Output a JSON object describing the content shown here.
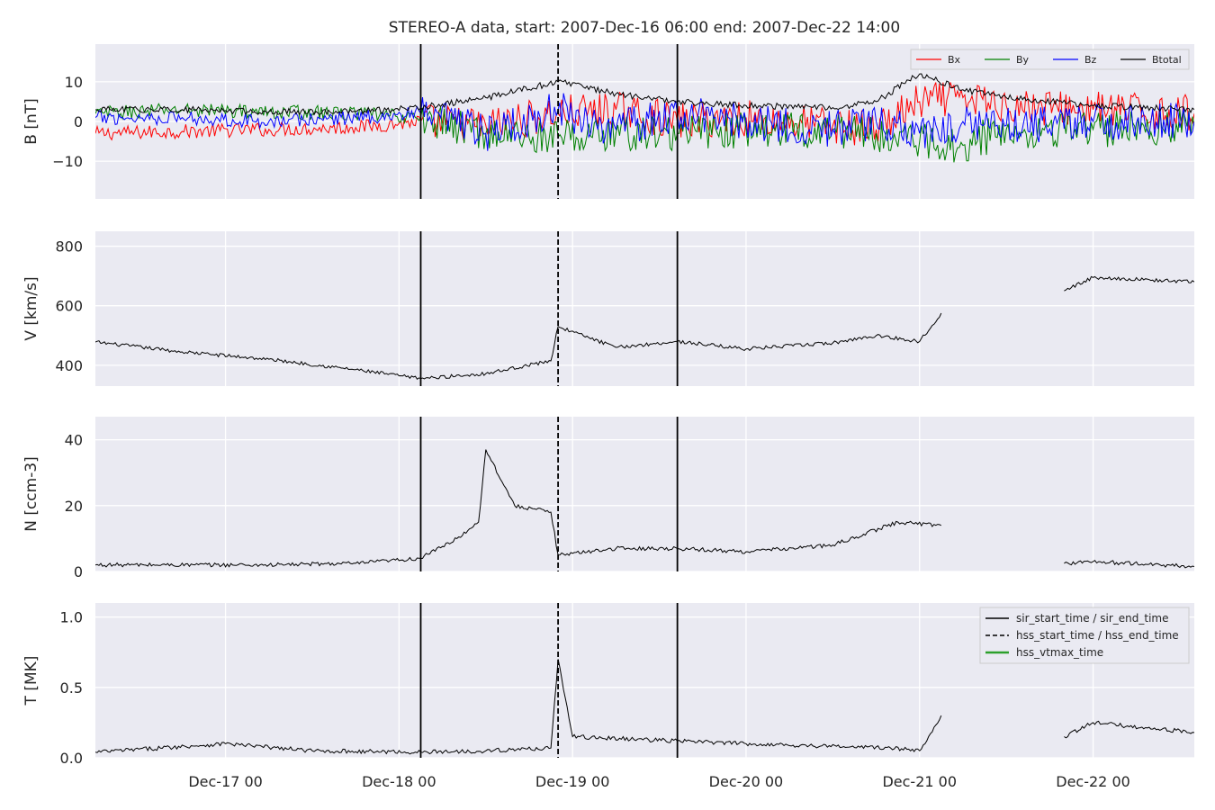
{
  "title": "STEREO-A data, start: 2007-Dec-16 06:00  end: 2007-Dec-22 14:00",
  "x_tick_labels": [
    "Dec-17 00",
    "Dec-18 00",
    "Dec-19 00",
    "Dec-20 00",
    "Dec-21 00",
    "Dec-22 00"
  ],
  "colors": {
    "panel_bg": "#eaeaf2",
    "grid": "#ffffff",
    "bx": "#ff0000",
    "by": "#008000",
    "bz": "#0000ff",
    "btotal": "#000000",
    "plasma": "#000000",
    "hss_vtmax": "#2ca02c"
  },
  "legend_b": [
    "Bx",
    "By",
    "Bz",
    "Btotal"
  ],
  "legend_events": [
    "sir_start_time / sir_end_time",
    "hss_start_time / hss_end_time",
    "hss_vtmax_time"
  ],
  "chart_data": {
    "type": "line",
    "x_axis": {
      "start": "2007-12-16 06:00",
      "end": "2007-12-22 14:00",
      "ticks": [
        "2007-12-17 00:00",
        "2007-12-18 00:00",
        "2007-12-19 00:00",
        "2007-12-20 00:00",
        "2007-12-21 00:00",
        "2007-12-22 00:00"
      ]
    },
    "events": {
      "sir_start_time": "2007-12-18 03:00",
      "hss_start_time": "2007-12-18 22:00",
      "sir_end_time": "2007-12-19 14:30"
    },
    "panels": [
      {
        "id": "b",
        "ylabel": "B [nT]",
        "ylim": [
          -19.5,
          19.5
        ],
        "yticks": [
          -10,
          0,
          10
        ],
        "ytick_labels": [
          "−10",
          "0",
          "10"
        ],
        "legend_position": "top-right",
        "x": [
          "2007-12-16 06:00",
          "2007-12-16 18:00",
          "2007-12-17 06:00",
          "2007-12-17 18:00",
          "2007-12-18 03:00",
          "2007-12-18 12:00",
          "2007-12-18 22:00",
          "2007-12-19 06:00",
          "2007-12-19 14:30",
          "2007-12-20 00:00",
          "2007-12-20 12:00",
          "2007-12-20 18:00",
          "2007-12-21 00:00",
          "2007-12-21 06:00",
          "2007-12-21 12:00",
          "2007-12-22 00:00",
          "2007-12-22 14:00"
        ],
        "series": [
          {
            "name": "Bx",
            "values": [
              -3,
              -2.5,
              -2,
              -1.5,
              0,
              -1,
              2,
              3,
              0,
              1,
              -1,
              -2,
              5,
              6,
              4,
              3,
              2
            ]
          },
          {
            "name": "By",
            "values": [
              2,
              3,
              2.5,
              2,
              1,
              -3,
              -4,
              -3,
              -3,
              -2,
              -2,
              -3,
              -5,
              -6,
              -2,
              -2,
              -1
            ]
          },
          {
            "name": "Bz",
            "values": [
              1,
              1,
              0,
              1,
              2,
              -3,
              3,
              -2,
              2,
              0,
              -2,
              0,
              -3,
              0,
              -1,
              0,
              0
            ]
          },
          {
            "name": "Btotal",
            "values": [
              3,
              3,
              2.5,
              2.5,
              3.5,
              6,
              10,
              7,
              5,
              4,
              3.5,
              5,
              12,
              8,
              6,
              4,
              3
            ]
          }
        ]
      },
      {
        "id": "v",
        "ylabel": "V [km/s]",
        "ylim": [
          330,
          850
        ],
        "yticks": [
          400,
          600,
          800
        ],
        "ytick_labels": [
          "400",
          "600",
          "800"
        ],
        "x": [
          "2007-12-16 06:00",
          "2007-12-16 18:00",
          "2007-12-17 06:00",
          "2007-12-17 18:00",
          "2007-12-18 03:00",
          "2007-12-18 12:00",
          "2007-12-18 21:00",
          "2007-12-18 22:00",
          "2007-12-19 06:00",
          "2007-12-19 14:30",
          "2007-12-20 00:00",
          "2007-12-20 12:00",
          "2007-12-20 18:00",
          "2007-12-21 00:00",
          "2007-12-21 03:00",
          "2007-12-21 12:00",
          "2007-12-21 20:00",
          "2007-12-22 00:00",
          "2007-12-22 14:00"
        ],
        "series": [
          {
            "name": "",
            "values": [
              478,
              445,
              420,
              385,
              355,
              372,
              415,
              530,
              460,
              480,
              455,
              475,
              500,
              480,
              575,
              null,
              650,
              695,
              680
            ]
          }
        ]
      },
      {
        "id": "n",
        "ylabel": "N [ccm-3]",
        "ylim": [
          0,
          47
        ],
        "yticks": [
          0,
          20,
          40
        ],
        "ytick_labels": [
          "0",
          "20",
          "40"
        ],
        "x": [
          "2007-12-16 06:00",
          "2007-12-17 06:00",
          "2007-12-17 18:00",
          "2007-12-18 03:00",
          "2007-12-18 08:00",
          "2007-12-18 11:00",
          "2007-12-18 12:00",
          "2007-12-18 16:00",
          "2007-12-18 21:00",
          "2007-12-18 22:00",
          "2007-12-19 06:00",
          "2007-12-19 14:30",
          "2007-12-20 00:00",
          "2007-12-20 12:00",
          "2007-12-20 21:00",
          "2007-12-21 03:00",
          "2007-12-21 12:00",
          "2007-12-21 20:00",
          "2007-12-22 00:00",
          "2007-12-22 14:00"
        ],
        "series": [
          {
            "name": "",
            "values": [
              2,
              2,
              2.5,
              4,
              10,
              15,
              37,
              20,
              18,
              5,
              7,
              7,
              6,
              8,
              15,
              14,
              null,
              2.5,
              3,
              1.5
            ]
          }
        ]
      },
      {
        "id": "t",
        "ylabel": "T [MK]",
        "ylim": [
          0,
          1.1
        ],
        "yticks": [
          0.0,
          0.5,
          1.0
        ],
        "ytick_labels": [
          "0.0",
          "0.5",
          "1.0"
        ],
        "legend_position": "top-right",
        "x": [
          "2007-12-16 06:00",
          "2007-12-17 00:00",
          "2007-12-17 12:00",
          "2007-12-18 03:00",
          "2007-12-18 12:00",
          "2007-12-18 21:00",
          "2007-12-18 22:00",
          "2007-12-19 00:00",
          "2007-12-19 14:30",
          "2007-12-20 00:00",
          "2007-12-20 20:00",
          "2007-12-21 00:00",
          "2007-12-21 03:00",
          "2007-12-21 12:00",
          "2007-12-21 20:00",
          "2007-12-22 00:00",
          "2007-12-22 14:00"
        ],
        "series": [
          {
            "name": "",
            "values": [
              0.04,
              0.1,
              0.05,
              0.04,
              0.05,
              0.07,
              0.7,
              0.15,
              0.12,
              0.1,
              0.07,
              0.05,
              0.3,
              null,
              0.15,
              0.25,
              0.18
            ]
          }
        ]
      }
    ]
  }
}
